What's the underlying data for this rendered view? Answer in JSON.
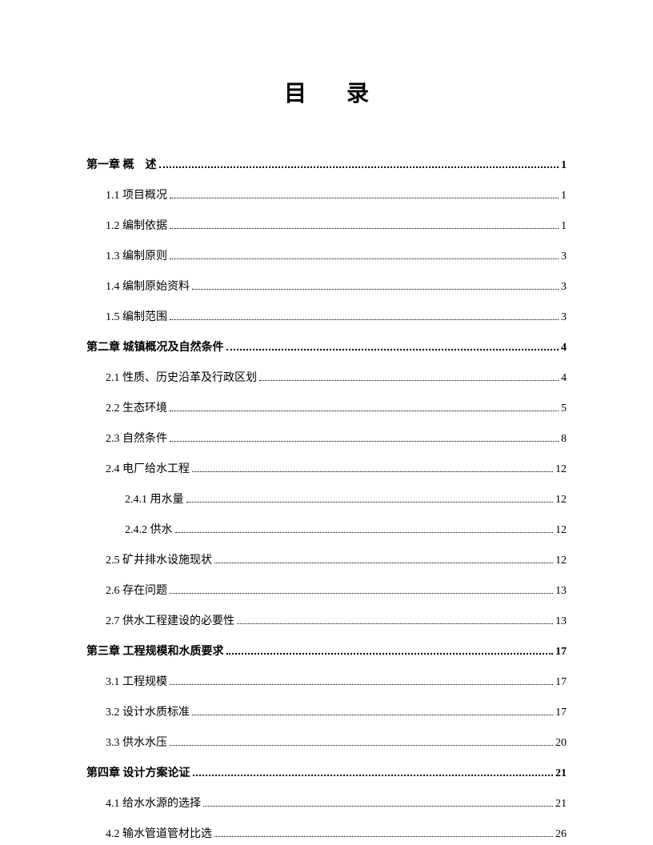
{
  "title": "目录",
  "entries": [
    {
      "level": "chapter",
      "label": "第一章 概　述",
      "page": "1"
    },
    {
      "level": "section",
      "label": "1.1 项目概况",
      "page": "1"
    },
    {
      "level": "section",
      "label": "1.2 编制依据",
      "page": "1"
    },
    {
      "level": "section",
      "label": "1.3 编制原则",
      "page": "3"
    },
    {
      "level": "section",
      "label": "1.4 编制原始资料",
      "page": "3"
    },
    {
      "level": "section",
      "label": "1.5 编制范围",
      "page": "3"
    },
    {
      "level": "chapter",
      "label": "第二章 城镇概况及自然条件",
      "page": "4"
    },
    {
      "level": "section",
      "label": "2.1 性质、历史沿革及行政区划",
      "page": "4"
    },
    {
      "level": "section",
      "label": "2.2 生态环境",
      "page": "5"
    },
    {
      "level": "section",
      "label": "2.3 自然条件",
      "page": "8"
    },
    {
      "level": "section",
      "label": "2.4 电厂给水工程",
      "page": "12"
    },
    {
      "level": "subsection",
      "label": "2.4.1 用水量",
      "page": "12"
    },
    {
      "level": "subsection",
      "label": "2.4.2 供水",
      "page": "12"
    },
    {
      "level": "section",
      "label": "2.5 矿井排水设施现状",
      "page": "12"
    },
    {
      "level": "section",
      "label": "2.6 存在问题",
      "page": "13"
    },
    {
      "level": "section",
      "label": "2.7 供水工程建设的必要性",
      "page": "13"
    },
    {
      "level": "chapter",
      "label": "第三章 工程规模和水质要求",
      "page": "17"
    },
    {
      "level": "section",
      "label": "3.1 工程规模",
      "page": "17"
    },
    {
      "level": "section",
      "label": "3.2 设计水质标准",
      "page": "17"
    },
    {
      "level": "section",
      "label": "3.3 供水水压",
      "page": "20"
    },
    {
      "level": "chapter",
      "label": "第四章 设计方案论证",
      "page": "21"
    },
    {
      "level": "section",
      "label": "4.1 给水水源的选择",
      "page": "21"
    },
    {
      "level": "section",
      "label": "4.2 输水管道管材比选",
      "page": "26"
    }
  ]
}
